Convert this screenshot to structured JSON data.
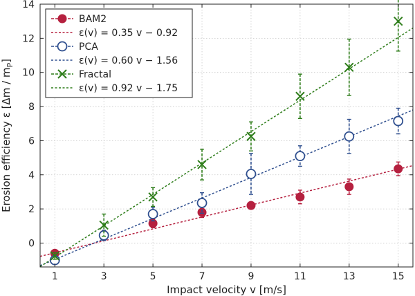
{
  "chart_data": {
    "type": "scatter",
    "xlabel": "Impact velocity v [m/s]",
    "ylabel": "Erosion efficiency ε [Δm / m",
    "ylabel_sub": "P",
    "ylabel_close": "]",
    "xlim": [
      0.4,
      15.6
    ],
    "ylim": [
      -1.4,
      14
    ],
    "xticks": [
      1,
      3,
      5,
      7,
      9,
      11,
      13,
      15
    ],
    "yticks": [
      0,
      2,
      4,
      6,
      8,
      10,
      12,
      14
    ],
    "grid": true,
    "legend_position": "top-left",
    "series": [
      {
        "name": "BAM2",
        "marker": "filled-circle",
        "color": "#b5203f",
        "x": [
          1,
          3,
          5,
          7,
          9,
          11,
          13,
          15
        ],
        "y": [
          -0.6,
          0.5,
          1.15,
          1.8,
          2.2,
          2.7,
          3.3,
          4.35
        ],
        "err": [
          0.12,
          0.15,
          0.25,
          0.3,
          0.15,
          0.4,
          0.45,
          0.4
        ],
        "fit": {
          "label": "ε(v) = 0.35 v − 0.92",
          "slope": 0.35,
          "intercept": -0.92
        }
      },
      {
        "name": "PCA",
        "marker": "open-circle",
        "color": "#2f4f8f",
        "x": [
          1,
          3,
          5,
          7,
          9,
          11,
          13,
          15
        ],
        "y": [
          -1.0,
          0.45,
          1.7,
          2.35,
          4.05,
          5.1,
          6.25,
          7.15
        ],
        "err": [
          0.15,
          0.3,
          0.4,
          0.6,
          1.2,
          0.6,
          1.0,
          0.75
        ],
        "fit": {
          "label": "ε(v) = 0.60 v − 1.56",
          "slope": 0.6,
          "intercept": -1.56
        }
      },
      {
        "name": "Fractal",
        "marker": "x",
        "color": "#2e7d1a",
        "x": [
          1,
          3,
          5,
          7,
          9,
          11,
          13,
          15
        ],
        "y": [
          -0.75,
          1.05,
          2.7,
          4.6,
          6.25,
          8.6,
          10.3,
          13.0
        ],
        "err": [
          0.2,
          0.65,
          0.55,
          0.9,
          0.85,
          1.3,
          1.65,
          1.75
        ],
        "fit": {
          "label": "ε(v) = 0.92 v − 1.75",
          "slope": 0.92,
          "intercept": -1.75
        }
      }
    ]
  }
}
